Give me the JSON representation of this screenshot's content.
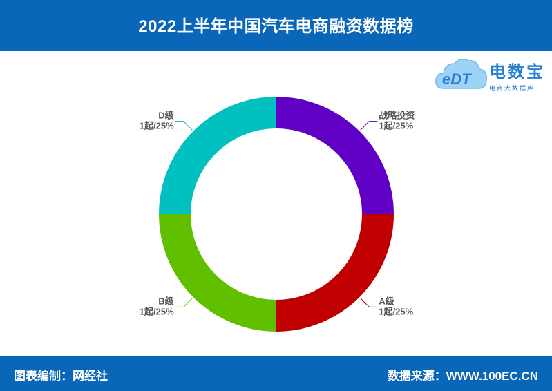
{
  "title": "2022上半年中国汽车电商融资数据榜",
  "footer": {
    "left": "图表编制：网经社",
    "right": "数据来源：WWW.100EC.CN"
  },
  "logo": {
    "mark": "eDT",
    "name": "电数宝",
    "sub": "电商大数据库"
  },
  "colors": {
    "header": "#0a66b8",
    "战略投资": "#6000c4",
    "A级": "#c00000",
    "B级": "#60c000",
    "D级": "#00c0c0"
  },
  "chart_data": {
    "type": "pie",
    "donut": true,
    "slices": [
      {
        "name": "战略投资",
        "value": 1,
        "percent": 25,
        "label_line1": "战略投资",
        "label_line2": "1起/25%",
        "color": "#6000c4"
      },
      {
        "name": "A级",
        "value": 1,
        "percent": 25,
        "label_line1": "A级",
        "label_line2": "1起/25%",
        "color": "#c00000"
      },
      {
        "name": "B级",
        "value": 1,
        "percent": 25,
        "label_line1": "B级",
        "label_line2": "1起/25%",
        "color": "#60c000"
      },
      {
        "name": "D级",
        "value": 1,
        "percent": 25,
        "label_line1": "D级",
        "label_line2": "1起/25%",
        "color": "#00c0c0"
      }
    ]
  }
}
